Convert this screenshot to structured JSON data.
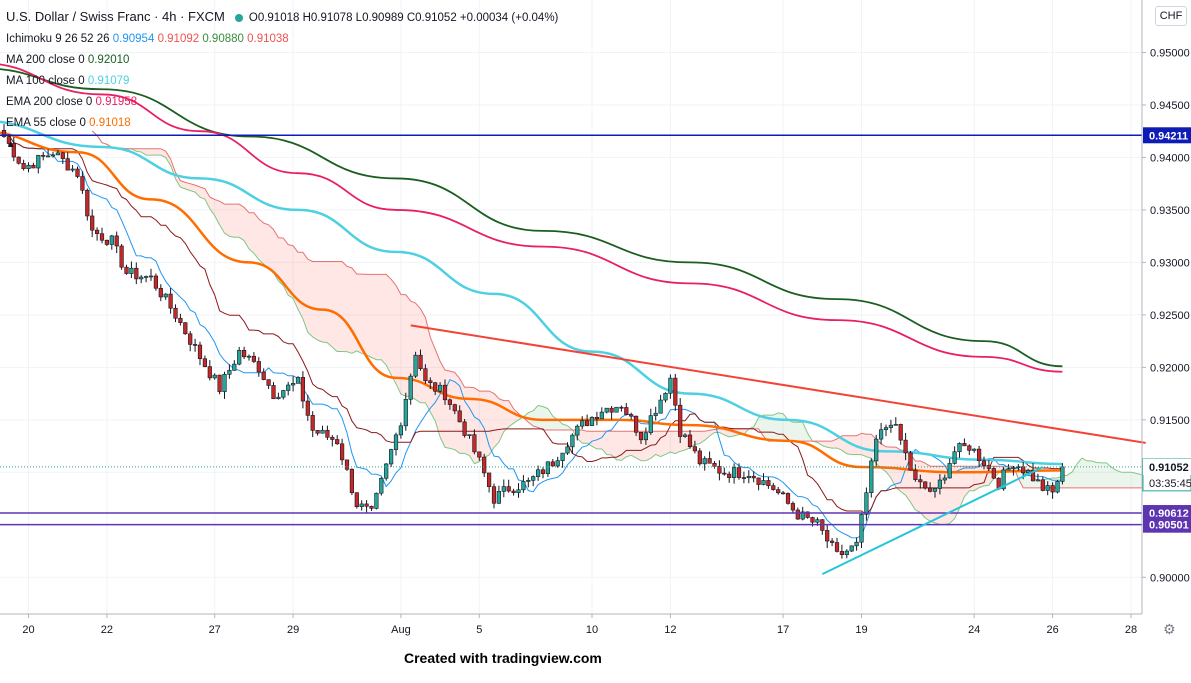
{
  "header": {
    "symbol": "U.S. Dollar / Swiss Franc · 4h · FXCM",
    "open": "O0.91018",
    "high": "H0.91078",
    "low": "L0.90989",
    "close": "C0.91052",
    "change": "+0.00034 (+0.04%)"
  },
  "indicators": {
    "ichimoku": {
      "label": "Ichimoku 9 26 52 26",
      "v1": "0.90954",
      "v2": "0.91092",
      "v3": "0.90880",
      "v4": "0.91038"
    },
    "ma200": {
      "label": "MA 200 close 0",
      "value": "0.92010"
    },
    "ma100": {
      "label": "MA 100 close 0",
      "value": "0.91079"
    },
    "ema200": {
      "label": "EMA 200 close 0",
      "value": "0.91958"
    },
    "ema55": {
      "label": "EMA 55 close 0",
      "value": "0.91018"
    }
  },
  "currency": "CHF",
  "countdown": "03:35:45",
  "footer": "Created with tradingview.com",
  "chart_data": {
    "type": "candlestick",
    "ylim": [
      0.8965,
      0.955
    ],
    "y_ticks": [
      0.9,
      0.905,
      0.91,
      0.915,
      0.92,
      0.925,
      0.93,
      0.935,
      0.94,
      0.945,
      0.95
    ],
    "y_tick_labels": [
      "0.90000",
      "0.90500",
      "0.91000",
      "0.91500",
      "0.92000",
      "0.92500",
      "0.93000",
      "0.93500",
      "0.94000",
      "0.94500",
      "0.95000"
    ],
    "x_ticks": [
      {
        "label": "20",
        "bar": 5
      },
      {
        "label": "22",
        "bar": 21
      },
      {
        "label": "27",
        "bar": 43
      },
      {
        "label": "29",
        "bar": 59
      },
      {
        "label": "Aug",
        "bar": 81
      },
      {
        "label": "5",
        "bar": 97
      },
      {
        "label": "10",
        "bar": 120
      },
      {
        "label": "12",
        "bar": 136
      },
      {
        "label": "17",
        "bar": 159
      },
      {
        "label": "19",
        "bar": 175
      },
      {
        "label": "24",
        "bar": 198
      },
      {
        "label": "26",
        "bar": 214
      },
      {
        "label": "28",
        "bar": 230
      }
    ],
    "bar_count": 217,
    "future_bars": 18,
    "anchors": [
      [
        0,
        0.942
      ],
      [
        4,
        0.939
      ],
      [
        10,
        0.9405
      ],
      [
        15,
        0.9385
      ],
      [
        18,
        0.933
      ],
      [
        22,
        0.932
      ],
      [
        25,
        0.929
      ],
      [
        30,
        0.9285
      ],
      [
        35,
        0.925
      ],
      [
        40,
        0.921
      ],
      [
        44,
        0.918
      ],
      [
        48,
        0.9215
      ],
      [
        52,
        0.92
      ],
      [
        55,
        0.9175
      ],
      [
        60,
        0.9185
      ],
      [
        63,
        0.914
      ],
      [
        68,
        0.913
      ],
      [
        72,
        0.907
      ],
      [
        75,
        0.906
      ],
      [
        78,
        0.9105
      ],
      [
        81,
        0.915
      ],
      [
        84,
        0.9215
      ],
      [
        86,
        0.9185
      ],
      [
        90,
        0.9175
      ],
      [
        94,
        0.914
      ],
      [
        97,
        0.911
      ],
      [
        100,
        0.9075
      ],
      [
        103,
        0.9085
      ],
      [
        107,
        0.909
      ],
      [
        112,
        0.911
      ],
      [
        115,
        0.913
      ],
      [
        118,
        0.9145
      ],
      [
        122,
        0.916
      ],
      [
        126,
        0.9165
      ],
      [
        130,
        0.9135
      ],
      [
        134,
        0.917
      ],
      [
        136,
        0.919
      ],
      [
        138,
        0.914
      ],
      [
        142,
        0.911
      ],
      [
        147,
        0.91
      ],
      [
        152,
        0.91
      ],
      [
        157,
        0.9085
      ],
      [
        162,
        0.906
      ],
      [
        166,
        0.905
      ],
      [
        170,
        0.902
      ],
      [
        174,
        0.903
      ],
      [
        176,
        0.908
      ],
      [
        178,
        0.913
      ],
      [
        181,
        0.915
      ],
      [
        183,
        0.913
      ],
      [
        186,
        0.909
      ],
      [
        190,
        0.908
      ],
      [
        194,
        0.912
      ],
      [
        197,
        0.9125
      ],
      [
        200,
        0.911
      ],
      [
        203,
        0.909
      ],
      [
        206,
        0.911
      ],
      [
        209,
        0.91
      ],
      [
        212,
        0.9085
      ],
      [
        214,
        0.908
      ],
      [
        216,
        0.91052
      ]
    ],
    "moving_averages": [
      {
        "name": "MA 200",
        "color": "#1b5e20",
        "points": [
          [
            -5,
            0.9485
          ],
          [
            20,
            0.9465
          ],
          [
            50,
            0.942
          ],
          [
            80,
            0.938
          ],
          [
            110,
            0.933
          ],
          [
            140,
            0.93
          ],
          [
            170,
            0.9265
          ],
          [
            200,
            0.9225
          ],
          [
            216,
            0.9201
          ]
        ]
      },
      {
        "name": "EMA 200",
        "color": "#e91e63",
        "points": [
          [
            -5,
            0.949
          ],
          [
            20,
            0.946
          ],
          [
            40,
            0.9425
          ],
          [
            60,
            0.9385
          ],
          [
            80,
            0.935
          ],
          [
            110,
            0.9315
          ],
          [
            140,
            0.928
          ],
          [
            170,
            0.9245
          ],
          [
            200,
            0.921
          ],
          [
            216,
            0.91958
          ]
        ]
      },
      {
        "name": "MA 100",
        "color": "#4dd0e1",
        "points": [
          [
            -5,
            0.9435
          ],
          [
            20,
            0.941
          ],
          [
            40,
            0.938
          ],
          [
            60,
            0.935
          ],
          [
            80,
            0.931
          ],
          [
            100,
            0.927
          ],
          [
            120,
            0.9215
          ],
          [
            140,
            0.9175
          ],
          [
            160,
            0.915
          ],
          [
            180,
            0.912
          ],
          [
            200,
            0.9112
          ],
          [
            216,
            0.91079
          ]
        ]
      },
      {
        "name": "EMA 55",
        "color": "#ff6d00",
        "points": [
          [
            -5,
            0.9425
          ],
          [
            15,
            0.9405
          ],
          [
            30,
            0.936
          ],
          [
            50,
            0.93
          ],
          [
            65,
            0.9255
          ],
          [
            80,
            0.919
          ],
          [
            95,
            0.917
          ],
          [
            110,
            0.915
          ],
          [
            125,
            0.915
          ],
          [
            140,
            0.9145
          ],
          [
            160,
            0.913
          ],
          [
            175,
            0.9105
          ],
          [
            195,
            0.91
          ],
          [
            216,
            0.91018
          ]
        ]
      }
    ],
    "horizontal_levels": [
      {
        "value": "0.94211",
        "color": "#0d1cb5"
      },
      {
        "value": "0.90612",
        "color": "#5e35b1"
      },
      {
        "value": "0.90501",
        "color": "#5e35b1"
      }
    ],
    "trendlines": [
      {
        "color": "#f44336",
        "from": [
          83,
          0.924
        ],
        "to": [
          233,
          0.9128
        ]
      },
      {
        "color": "#26c6da",
        "from": [
          167,
          0.9003
        ],
        "to": [
          212,
          0.9105
        ]
      }
    ],
    "last_price": "0.91052"
  }
}
